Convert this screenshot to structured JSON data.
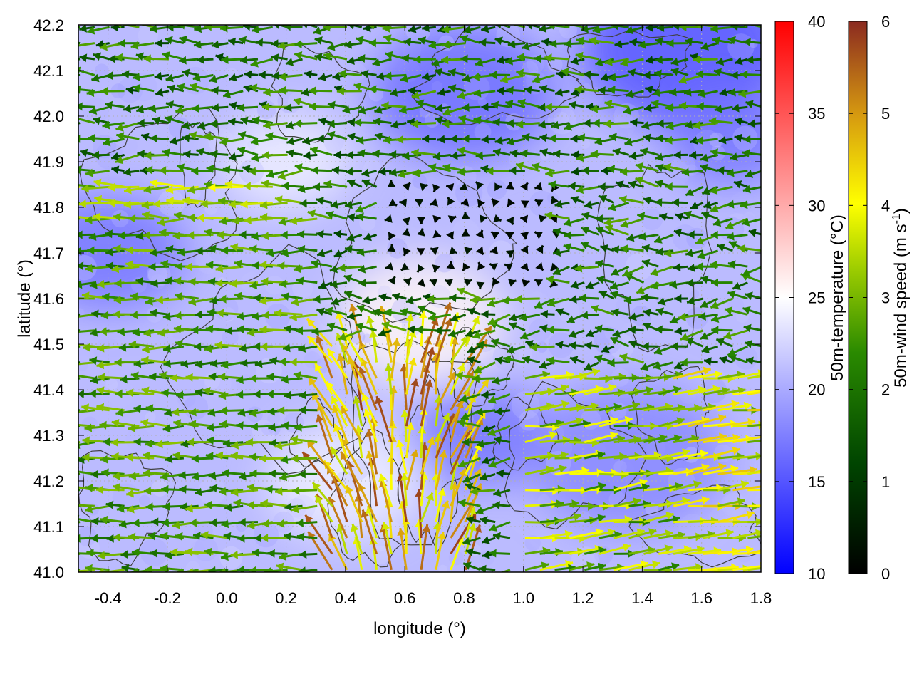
{
  "chart_data": {
    "type": "heatmap",
    "xlabel": "longitude (°)",
    "ylabel": "latitude (°)",
    "xlim": [
      -0.5,
      1.8
    ],
    "ylim": [
      41.0,
      42.2
    ],
    "xticks": [
      "-0.4",
      "-0.2",
      "0.0",
      "0.2",
      "0.4",
      "0.6",
      "0.8",
      "1.0",
      "1.2",
      "1.4",
      "1.6",
      "1.8"
    ],
    "yticks": [
      "41.0",
      "41.1",
      "41.2",
      "41.3",
      "41.4",
      "41.5",
      "41.6",
      "41.7",
      "41.8",
      "41.9",
      "42.0",
      "42.1",
      "42.2"
    ],
    "grid": true,
    "colorbars": [
      {
        "label": "50m-temperature (°C)",
        "range": [
          10,
          40
        ],
        "ticks": [
          "10",
          "15",
          "20",
          "25",
          "30",
          "35",
          "40"
        ],
        "colors": [
          "#0000ff",
          "#ffffff",
          "#ff0000"
        ]
      },
      {
        "label_main": "50m-wind speed (m s",
        "label_sup": "-1",
        "label_end": ")",
        "range": [
          0,
          6
        ],
        "ticks": [
          "0",
          "1",
          "2",
          "3",
          "4",
          "5",
          "6"
        ],
        "colors": [
          "#000000",
          "#006400",
          "#7fb800",
          "#ffff00",
          "#e0a000",
          "#8b1a1a"
        ]
      }
    ],
    "temperature_field": {
      "background_celsius": 21,
      "cool_zones": [
        {
          "lon": 1.55,
          "lat": 42.15,
          "celsius": 15
        },
        {
          "lon": 0.8,
          "lat": 42.05,
          "celsius": 16.5
        },
        {
          "lon": -0.4,
          "lat": 41.7,
          "celsius": 17
        },
        {
          "lon": 0.85,
          "lat": 41.3,
          "celsius": 17
        },
        {
          "lon": 1.7,
          "lat": 41.95,
          "celsius": 17
        },
        {
          "lon": 1.35,
          "lat": 41.25,
          "celsius": 18
        }
      ],
      "warm_zones": [
        {
          "lon": 0.65,
          "lat": 41.55,
          "celsius": 25.5
        },
        {
          "lon": 0.4,
          "lat": 41.2,
          "celsius": 24
        },
        {
          "lon": 0.2,
          "lat": 41.9,
          "celsius": 24
        }
      ]
    },
    "wind_field": {
      "grid_lon_spacing": 0.05,
      "grid_lat_spacing": 0.035,
      "regimes": [
        {
          "region": "west",
          "lon_max": 0.35,
          "direction": "westward",
          "speed_ms": 2.4
        },
        {
          "region": "north",
          "lat_min": 41.85,
          "direction": "variable westward",
          "speed_ms": 1.8
        },
        {
          "region": "central calm",
          "lon": [
            0.55,
            1.15
          ],
          "lat": [
            41.6,
            41.85
          ],
          "speed_ms": 0.2
        },
        {
          "region": "south-central convergence",
          "lon": [
            0.35,
            0.85
          ],
          "lat": [
            41.0,
            41.5
          ],
          "direction": "northward",
          "speed_ms": 4.5
        },
        {
          "region": "east",
          "lon_min": 1.0,
          "lat_max": 41.45,
          "direction": "eastward",
          "speed_ms": 3.2
        }
      ]
    }
  }
}
